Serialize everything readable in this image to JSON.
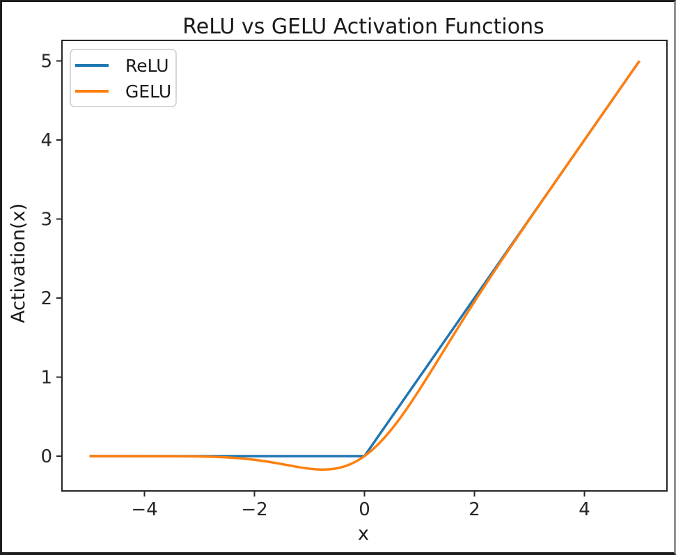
{
  "window": {
    "border_color": "#1d1d1d",
    "background": "#ffffff"
  },
  "chart_data": {
    "type": "line",
    "title": "ReLU vs GELU Activation Functions",
    "xlabel": "x",
    "ylabel": "Activation(x)",
    "xlim": [
      -5.5,
      5.5
    ],
    "ylim": [
      -0.44,
      5.26
    ],
    "grid": false,
    "xticks": {
      "values": [
        -4,
        -2,
        0,
        2,
        4
      ],
      "labels": [
        "−4",
        "−2",
        "0",
        "2",
        "4"
      ]
    },
    "yticks": {
      "values": [
        0,
        1,
        2,
        3,
        4,
        5
      ],
      "labels": [
        "0",
        "1",
        "2",
        "3",
        "4",
        "5"
      ]
    },
    "legend": {
      "position": "upper left",
      "entries": [
        "ReLU",
        "GELU"
      ]
    },
    "x": [
      -5,
      -4.75,
      -4.5,
      -4.25,
      -4,
      -3.75,
      -3.5,
      -3.25,
      -3,
      -2.75,
      -2.5,
      -2.25,
      -2,
      -1.75,
      -1.5,
      -1.375,
      -1.25,
      -1.125,
      -1,
      -0.875,
      -0.75,
      -0.625,
      -0.5,
      -0.375,
      -0.25,
      -0.125,
      0,
      0.125,
      0.25,
      0.375,
      0.5,
      0.625,
      0.75,
      0.875,
      1,
      1.125,
      1.25,
      1.375,
      1.5,
      1.75,
      2,
      2.25,
      2.5,
      2.75,
      3,
      3.25,
      3.5,
      3.75,
      4,
      4.25,
      4.5,
      4.75,
      5
    ],
    "series": [
      {
        "name": "ReLU",
        "color": "#1f77b4",
        "values": [
          0,
          0,
          0,
          0,
          0,
          0,
          0,
          0,
          0,
          0,
          0,
          0,
          0,
          0,
          0,
          0,
          0,
          0,
          0,
          0,
          0,
          0,
          0,
          0,
          0,
          0,
          0,
          0.125,
          0.25,
          0.375,
          0.5,
          0.625,
          0.75,
          0.875,
          1,
          1.125,
          1.25,
          1.375,
          1.5,
          1.75,
          2,
          2.25,
          2.5,
          2.75,
          3,
          3.25,
          3.5,
          3.75,
          4,
          4.25,
          4.5,
          4.75,
          5
        ]
      },
      {
        "name": "GELU",
        "color": "#ff7f0e",
        "values": [
          0,
          0,
          0,
          0,
          -0.0001,
          -0.0003,
          -0.0008,
          -0.0019,
          -0.004,
          -0.0082,
          -0.0155,
          -0.0275,
          -0.0455,
          -0.0701,
          -0.1002,
          -0.1163,
          -0.132,
          -0.1466,
          -0.1587,
          -0.167,
          -0.17,
          -0.1663,
          -0.1543,
          -0.1327,
          -0.1003,
          -0.0563,
          0,
          0.0687,
          0.1497,
          0.2423,
          0.3457,
          0.4588,
          0.58,
          0.7081,
          0.8413,
          0.9784,
          1.118,
          1.2587,
          1.3998,
          1.6798,
          1.9545,
          2.2225,
          2.4845,
          2.7418,
          2.996,
          3.2481,
          3.4992,
          3.7497,
          3.9999,
          4.25,
          4.5,
          4.75,
          5
        ]
      }
    ]
  }
}
